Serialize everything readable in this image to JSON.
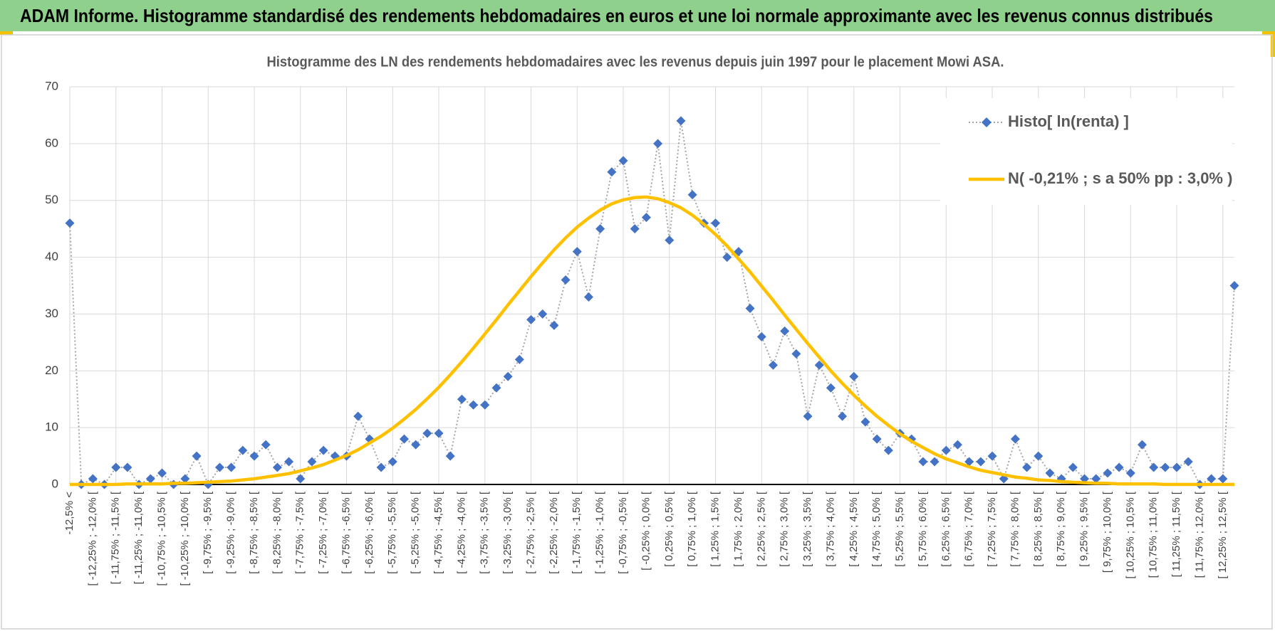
{
  "header": {
    "title": "ADAM Informe. Histogramme standardisé des rendements hebdomadaires en euros et une loi normale approximante avec les revenus connus distribués"
  },
  "chart_data": {
    "type": "line",
    "title": "Histogramme  des LN des rendements hebdomadaires avec les revenus depuis juin 1997  pour le placement Mowi ASA.",
    "categories": [
      "-12,5% <",
      null,
      "[ -12,25% ; -12,0% [",
      null,
      "[ -11,75% ; -11,5% [",
      null,
      "[ -11,25% ; -11,0% [",
      null,
      "[ -10,75% ; -10,5% [",
      null,
      "[ -10,25% ; -10,0% [",
      null,
      "[ -9,75% ; -9,5% [",
      null,
      "[ -9,25% ; -9,0% [",
      null,
      "[ -8,75% ; -8,5% [",
      null,
      "[ -8,25% ; -8,0% [",
      null,
      "[ -7,75% ; -7,5% [",
      null,
      "[ -7,25% ; -7,0% [",
      null,
      "[ -6,75% ; -6,5% [",
      null,
      "[ -6,25% ; -6,0% [",
      null,
      "[ -5,75% ; -5,5% [",
      null,
      "[ -5,25% ; -5,0% [",
      null,
      "[ -4,75% ; -4,5% [",
      null,
      "[ -4,25% ; -4,0% [",
      null,
      "[ -3,75% ; -3,5% [",
      null,
      "[ -3,25% ; -3,0% [",
      null,
      "[ -2,75% ; -2,5% [",
      null,
      "[ -2,25% ; -2,0% [",
      null,
      "[ -1,75% ; -1,5% [",
      null,
      "[ -1,25% ; -1,0% [",
      null,
      "[ -0,75% ; -0,5% [",
      null,
      "[ -0,25% ; 0,0% [",
      null,
      "[ 0,25% ; 0,5% [",
      null,
      "[ 0,75% ; 1,0% [",
      null,
      "[ 1,25% ; 1,5% [",
      null,
      "[ 1,75% ; 2,0% [",
      null,
      "[ 2,25% ; 2,5% [",
      null,
      "[ 2,75% ; 3,0% [",
      null,
      "[ 3,25% ; 3,5% [",
      null,
      "[ 3,75% ; 4,0% [",
      null,
      "[ 4,25% ; 4,5% [",
      null,
      "[ 4,75% ; 5,0% [",
      null,
      "[ 5,25% ; 5,5% [",
      null,
      "[ 5,75% ; 6,0% [",
      null,
      "[ 6,25% ; 6,5% [",
      null,
      "[ 6,75% ; 7,0% [",
      null,
      "[ 7,25% ; 7,5% [",
      null,
      "[ 7,75% ; 8,0% [",
      null,
      "[ 8,25% ; 8,5% [",
      null,
      "[ 8,75% ; 9,0% [",
      null,
      "[ 9,25% ; 9,5% [",
      null,
      "[ 9,75% ; 10,0% [",
      null,
      "[ 10,25% ; 10,5% [",
      null,
      "[ 10,75% ; 11,0% [",
      null,
      "[ 11,25% ; 11,5% [",
      null,
      "[ 11,75% ; 12,0% [",
      null,
      "[ 12,25% ; 12,5% [",
      null
    ],
    "series": [
      {
        "name": "Histo[ ln(renta) ]",
        "color": "#4472c4",
        "line_color": "#a6a6a6",
        "line_style": "dotted",
        "marker": "diamond",
        "values": [
          46,
          0,
          1,
          0,
          3,
          3,
          0,
          1,
          2,
          0,
          1,
          5,
          0,
          3,
          3,
          6,
          5,
          7,
          3,
          4,
          1,
          4,
          6,
          5,
          5,
          12,
          8,
          3,
          4,
          8,
          7,
          9,
          9,
          5,
          15,
          14,
          14,
          17,
          19,
          22,
          29,
          30,
          28,
          36,
          41,
          33,
          45,
          55,
          57,
          45,
          47,
          60,
          43,
          64,
          51,
          46,
          46,
          40,
          41,
          31,
          26,
          21,
          27,
          23,
          12,
          21,
          17,
          12,
          19,
          11,
          8,
          6,
          9,
          8,
          4,
          4,
          6,
          7,
          4,
          4,
          5,
          1,
          8,
          3,
          5,
          2,
          1,
          3,
          1,
          1,
          2,
          3,
          2,
          7,
          3,
          3,
          3,
          4,
          0,
          1,
          1,
          35
        ]
      },
      {
        "name": "N( -0,21% ; s a 50% pp : 3,0% )",
        "color": "#ffc000",
        "line_style": "solid",
        "marker": "none",
        "values": [
          0,
          0,
          0,
          0,
          0,
          0.1,
          0.1,
          0.1,
          0.1,
          0.2,
          0.2,
          0.3,
          0.4,
          0.5,
          0.6,
          0.8,
          1.0,
          1.3,
          1.6,
          1.9,
          2.4,
          2.9,
          3.5,
          4.3,
          5.1,
          6.1,
          7.3,
          8.5,
          9.9,
          11.5,
          13.2,
          15.1,
          17.1,
          19.3,
          21.6,
          24.0,
          26.5,
          29.0,
          31.6,
          34.1,
          36.6,
          39.0,
          41.3,
          43.4,
          45.3,
          46.9,
          48.3,
          49.4,
          50.1,
          50.5,
          50.6,
          50.3,
          49.6,
          48.7,
          47.4,
          45.8,
          44.0,
          42.0,
          39.7,
          37.4,
          34.9,
          32.4,
          29.8,
          27.3,
          24.8,
          22.4,
          20.0,
          17.8,
          15.7,
          13.8,
          12.0,
          10.4,
          8.9,
          7.6,
          6.5,
          5.4,
          4.5,
          3.8,
          3.1,
          2.5,
          2.1,
          1.7,
          1.3,
          1.1,
          0.8,
          0.7,
          0.5,
          0.4,
          0.3,
          0.2,
          0.2,
          0.1,
          0.1,
          0.1,
          0.1,
          0,
          0,
          0,
          0,
          0,
          0,
          0
        ]
      }
    ],
    "ylim": [
      0,
      70
    ],
    "yticks": [
      0,
      10,
      20,
      30,
      40,
      50,
      60,
      70
    ],
    "grid": true,
    "legend": "top-right"
  }
}
